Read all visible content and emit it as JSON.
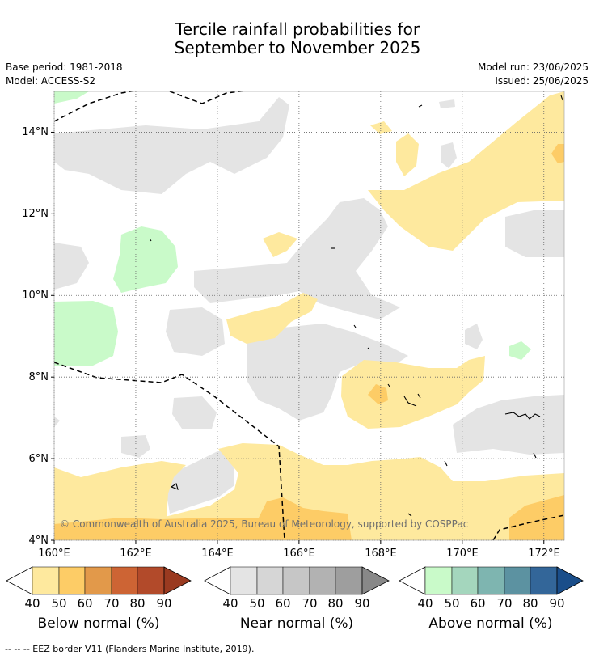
{
  "title": {
    "line1": "Tercile rainfall probabilities for",
    "line2": "September to November 2025"
  },
  "meta": {
    "base_period": "Base period: 1981-2018",
    "model": "Model: ACCESS-S2",
    "model_run": "Model run: 23/06/2025",
    "issued": "Issued: 25/06/2025"
  },
  "copyright": "© Commonwealth of Australia 2025, Bureau of Meteorology, supported by COSPPac",
  "footnote": "--  --  -- EEZ border V11 (Flanders Marine Institute, 2019).",
  "map": {
    "lon_range": [
      160.0,
      172.5
    ],
    "lat_range": [
      4.0,
      15.0
    ],
    "x_ticks": [
      "160°E",
      "162°E",
      "164°E",
      "166°E",
      "168°E",
      "170°E",
      "172°E"
    ],
    "y_ticks": [
      "4°N",
      "6°N",
      "8°N",
      "10°N",
      "12°N",
      "14°N"
    ],
    "grid": true
  },
  "colorbars": [
    {
      "name": "Below normal (%)",
      "ticks": [
        "40",
        "50",
        "60",
        "70",
        "80",
        "90"
      ],
      "colors": [
        "#ffffff",
        "#fee99e",
        "#fdcc66",
        "#e2994a",
        "#cd6434",
        "#b24a2a",
        "#9a3a20"
      ]
    },
    {
      "name": "Near normal (%)",
      "ticks": [
        "40",
        "50",
        "60",
        "70",
        "80",
        "90"
      ],
      "colors": [
        "#ffffff",
        "#e4e4e4",
        "#d6d6d6",
        "#c6c6c6",
        "#b2b2b2",
        "#9e9e9e",
        "#888888"
      ]
    },
    {
      "name": "Above normal (%)",
      "ticks": [
        "40",
        "50",
        "60",
        "70",
        "80",
        "90"
      ],
      "colors": [
        "#ffffff",
        "#c9fac9",
        "#a4d6bd",
        "#7eb5b0",
        "#5c92a1",
        "#336699",
        "#1a4e8a"
      ]
    }
  ]
}
